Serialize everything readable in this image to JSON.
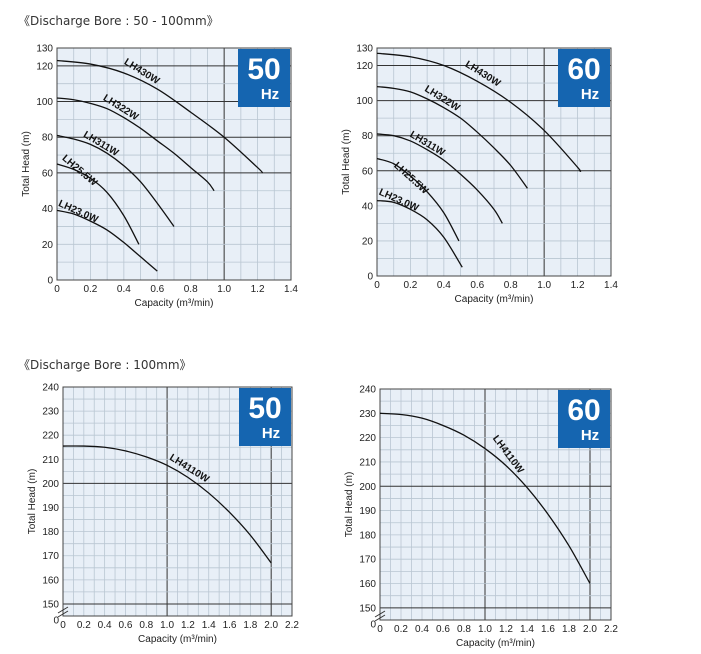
{
  "sections": [
    {
      "title": "《Discharge Bore : 50 - 100mm》"
    },
    {
      "title": "《Discharge Bore : 100mm》"
    }
  ],
  "chart_data": [
    {
      "type": "line",
      "badge": {
        "number": "50",
        "unit": "Hz"
      },
      "xlabel": "Capacity (m³/min)",
      "ylabel": "Total Head (m)",
      "xlim": [
        0,
        1.4
      ],
      "ylim": [
        0,
        130
      ],
      "x_ticks": [
        "0",
        "0.2",
        "0.4",
        "0.6",
        "0.8",
        "1.0",
        "1.2",
        "1.4"
      ],
      "y_ticks": [
        "0",
        "20",
        "40",
        "60",
        "80",
        "100",
        "120",
        "130"
      ],
      "grid": true,
      "colors": {
        "grid_fill": "#e8eff7",
        "grid_line": "#b9c6d2",
        "major_line": "#333333",
        "curve": "#111111",
        "badge": "#1565b0"
      },
      "series": [
        {
          "name": "LH430W",
          "x": [
            0,
            0.2,
            0.4,
            0.6,
            0.8,
            1.0,
            1.2,
            1.23
          ],
          "y": [
            123,
            121,
            116,
            107,
            94,
            80,
            63,
            60
          ]
        },
        {
          "name": "LH322W",
          "x": [
            0,
            0.1,
            0.2,
            0.3,
            0.4,
            0.5,
            0.6,
            0.7,
            0.8,
            0.9,
            0.94
          ],
          "y": [
            102,
            101,
            99,
            96,
            91,
            85,
            78,
            71,
            63,
            55,
            50
          ]
        },
        {
          "name": "LH311W",
          "x": [
            0,
            0.1,
            0.2,
            0.3,
            0.4,
            0.5,
            0.6,
            0.7
          ],
          "y": [
            81,
            79,
            76,
            71,
            64,
            55,
            43,
            30
          ]
        },
        {
          "name": "LH25.5W",
          "x": [
            0,
            0.1,
            0.2,
            0.3,
            0.4,
            0.49
          ],
          "y": [
            65,
            62,
            57,
            49,
            36,
            20
          ]
        },
        {
          "name": "LH23.0W",
          "x": [
            0,
            0.1,
            0.2,
            0.3,
            0.4,
            0.5,
            0.6
          ],
          "y": [
            39,
            37,
            33,
            28,
            21,
            13,
            5
          ]
        }
      ]
    },
    {
      "type": "line",
      "badge": {
        "number": "60",
        "unit": "Hz"
      },
      "xlabel": "Capacity (m³/min)",
      "ylabel": "Total Head (m)",
      "xlim": [
        0,
        1.4
      ],
      "ylim": [
        0,
        130
      ],
      "x_ticks": [
        "0",
        "0.2",
        "0.4",
        "0.6",
        "0.8",
        "1.0",
        "1.2",
        "1.4"
      ],
      "y_ticks": [
        "0",
        "20",
        "40",
        "60",
        "80",
        "100",
        "120",
        "130"
      ],
      "grid": true,
      "colors": {
        "grid_fill": "#e8eff7",
        "grid_line": "#b9c6d2",
        "major_line": "#333333",
        "curve": "#111111",
        "badge": "#1565b0"
      },
      "series": [
        {
          "name": "LH430W",
          "x": [
            0,
            0.2,
            0.4,
            0.6,
            0.8,
            1.0,
            1.2,
            1.21
          ],
          "y": [
            127,
            125,
            120,
            111,
            99,
            83,
            62,
            60
          ]
        },
        {
          "name": "LH322W",
          "x": [
            0,
            0.1,
            0.2,
            0.3,
            0.4,
            0.5,
            0.6,
            0.7,
            0.8,
            0.9
          ],
          "y": [
            108,
            107,
            105,
            101,
            96,
            90,
            82,
            73,
            63,
            50
          ]
        },
        {
          "name": "LH311W",
          "x": [
            0,
            0.1,
            0.2,
            0.3,
            0.4,
            0.5,
            0.6,
            0.7,
            0.75
          ],
          "y": [
            81,
            80,
            77,
            72,
            66,
            58,
            49,
            38,
            30
          ]
        },
        {
          "name": "LH25.5W",
          "x": [
            0,
            0.1,
            0.2,
            0.3,
            0.4,
            0.49
          ],
          "y": [
            67,
            64,
            57,
            48,
            36,
            20
          ]
        },
        {
          "name": "LH23.0W",
          "x": [
            0,
            0.1,
            0.2,
            0.3,
            0.4,
            0.51
          ],
          "y": [
            43,
            42,
            38,
            32,
            22,
            5
          ]
        }
      ]
    },
    {
      "type": "line",
      "badge": {
        "number": "50",
        "unit": "Hz"
      },
      "xlabel": "Capacity (m³/min)",
      "ylabel": "Total Head (m)",
      "xlim": [
        0,
        2.2
      ],
      "ylim": [
        145,
        240
      ],
      "axis_break": true,
      "x_ticks": [
        "0",
        "0.2",
        "0.4",
        "0.6",
        "0.8",
        "1.0",
        "1.2",
        "1.4",
        "1.6",
        "1.8",
        "2.0",
        "2.2"
      ],
      "y_ticks": [
        "0",
        "150",
        "160",
        "170",
        "180",
        "190",
        "200",
        "210",
        "220",
        "230",
        "240"
      ],
      "grid": true,
      "colors": {
        "grid_fill": "#e8eff7",
        "grid_line": "#b9c6d2",
        "major_line": "#333333",
        "curve": "#111111",
        "badge": "#1565b0"
      },
      "series": [
        {
          "name": "LH4110W",
          "x": [
            0,
            0.2,
            0.4,
            0.6,
            0.8,
            1.0,
            1.2,
            1.4,
            1.6,
            1.8,
            2.0
          ],
          "y": [
            215.5,
            215.5,
            215,
            213.5,
            211,
            207.5,
            202.5,
            196,
            188,
            178.5,
            167
          ]
        }
      ]
    },
    {
      "type": "line",
      "badge": {
        "number": "60",
        "unit": "Hz"
      },
      "xlabel": "Capacity (m³/min)",
      "ylabel": "Total Head (m)",
      "xlim": [
        0,
        2.2
      ],
      "ylim": [
        145,
        240
      ],
      "axis_break": true,
      "x_ticks": [
        "0",
        "0.2",
        "0.4",
        "0.6",
        "0.8",
        "1.0",
        "1.2",
        "1.4",
        "1.6",
        "1.8",
        "2.0",
        "2.2"
      ],
      "y_ticks": [
        "0",
        "150",
        "160",
        "170",
        "180",
        "190",
        "200",
        "210",
        "220",
        "230",
        "240"
      ],
      "grid": true,
      "colors": {
        "grid_fill": "#e8eff7",
        "grid_line": "#b9c6d2",
        "major_line": "#333333",
        "curve": "#111111",
        "badge": "#1565b0"
      },
      "series": [
        {
          "name": "LH4110W",
          "x": [
            0,
            0.2,
            0.4,
            0.6,
            0.8,
            1.0,
            1.2,
            1.4,
            1.6,
            1.8,
            2.0
          ],
          "y": [
            230,
            229.5,
            228,
            225,
            221,
            215.5,
            208.5,
            199.5,
            188.5,
            175.5,
            160
          ]
        }
      ]
    }
  ]
}
